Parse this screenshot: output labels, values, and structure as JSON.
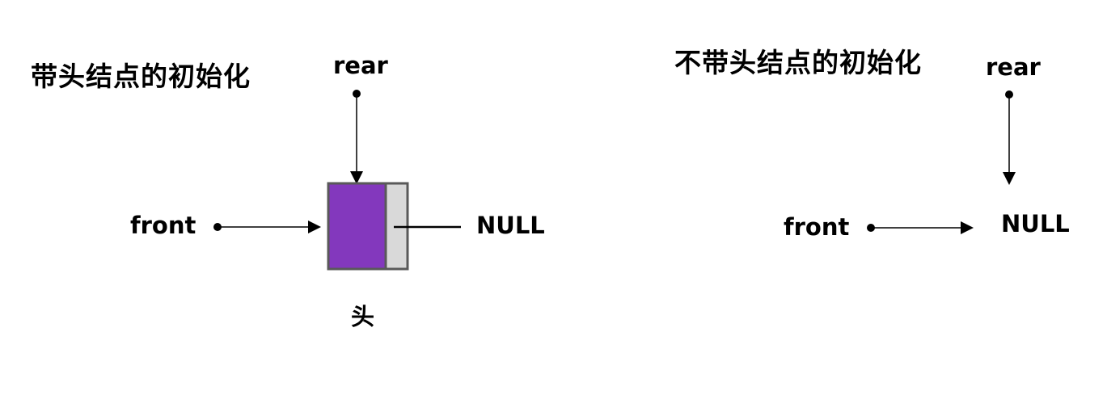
{
  "left_panel": {
    "title": "带头结点的初始化",
    "rear_label": "rear",
    "front_label": "front",
    "null_label": "NULL",
    "node_caption": "头",
    "node_data_color": "#8338bd",
    "node_next_color": "#d9d9d9",
    "node_border_color": "#595959"
  },
  "right_panel": {
    "title": "不带头结点的初始化",
    "rear_label": "rear",
    "front_label": "front",
    "null_label": "NULL"
  }
}
